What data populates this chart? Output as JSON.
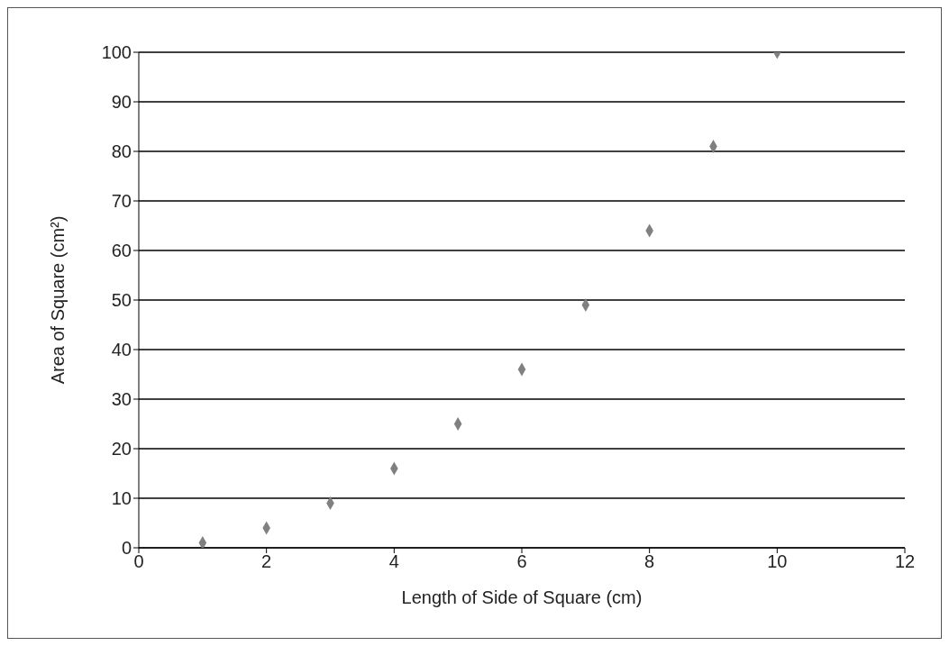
{
  "chart_data": {
    "type": "scatter",
    "xlabel": "Length of Side of Square (cm)",
    "ylabel": "Area of Square (cm²)",
    "x": [
      1,
      2,
      3,
      4,
      5,
      6,
      7,
      8,
      9,
      10
    ],
    "values": [
      1,
      4,
      9,
      16,
      25,
      36,
      49,
      64,
      81,
      100
    ],
    "color": "#808080",
    "marker": "diamond",
    "grid": "y",
    "xlim": [
      0,
      12
    ],
    "xticks": [
      0,
      2,
      4,
      6,
      8,
      10,
      12
    ],
    "ylim": [
      0,
      100
    ],
    "yticks": [
      0,
      10,
      20,
      30,
      40,
      50,
      60,
      70,
      80,
      90,
      100
    ]
  }
}
